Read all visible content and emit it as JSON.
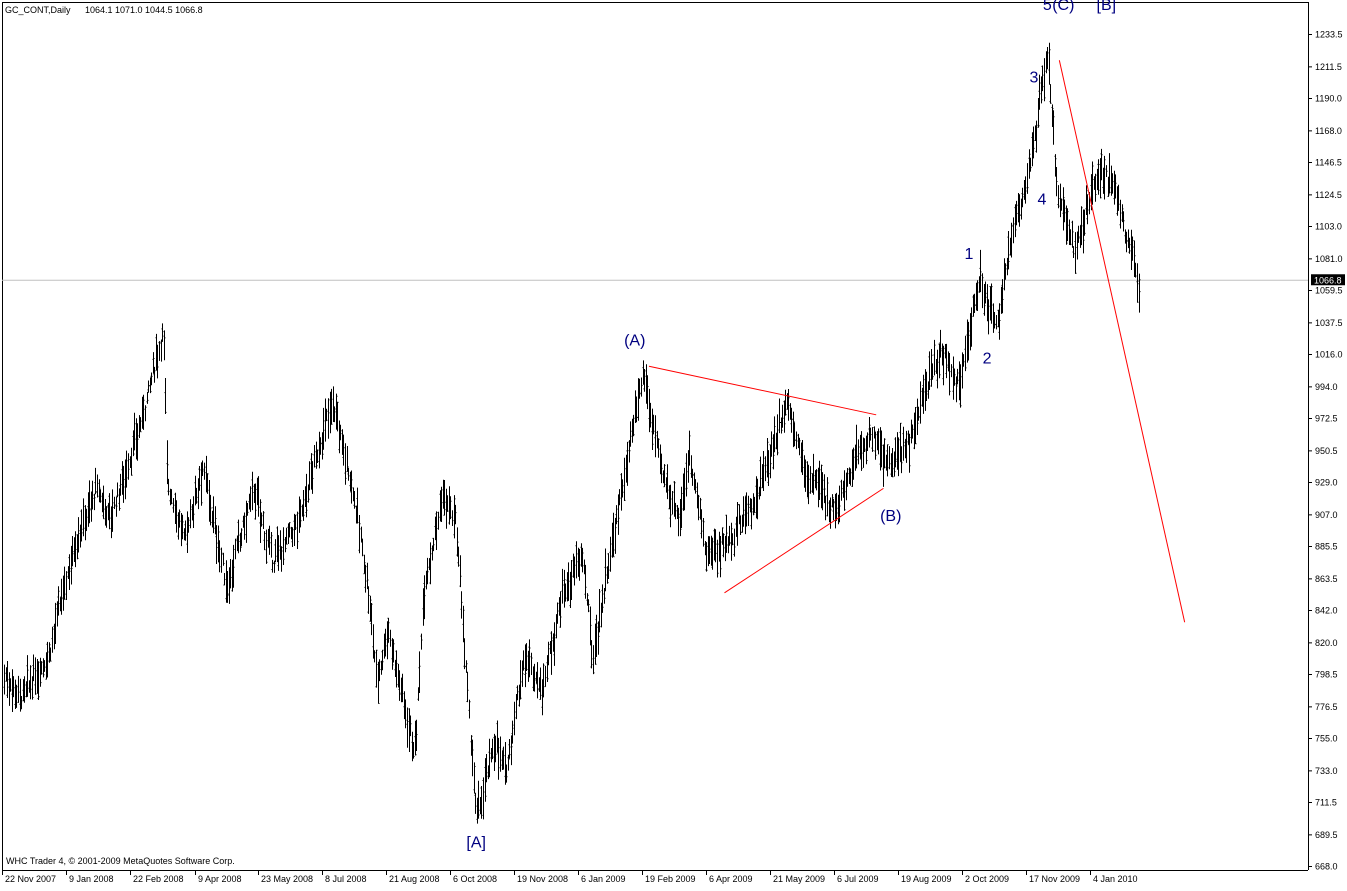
{
  "header": {
    "symbol_timeframe": "GC_CONT,Daily",
    "ohlc": "1064.1 1071.0 1044.5 1066.8"
  },
  "footer": {
    "copyright": "WHC Trader 4, © 2001-2009 MetaQuotes Software Corp."
  },
  "current_price_label": "1066.8",
  "chart_data": {
    "type": "ohlc-bar",
    "symbol": "GC_CONT",
    "timeframe": "Daily",
    "last_bar": {
      "open": 1064.1,
      "high": 1071.0,
      "low": 1044.5,
      "close": 1066.8
    },
    "current_price": 1066.8,
    "ylim": [
      668.0,
      1255.0
    ],
    "y_ticks": [
      {
        "value": 1233.5,
        "label": "1233.5"
      },
      {
        "value": 1211.5,
        "label": "1211.5"
      },
      {
        "value": 1190.0,
        "label": "1190.0"
      },
      {
        "value": 1168.0,
        "label": "1168.0"
      },
      {
        "value": 1146.5,
        "label": "1146.5"
      },
      {
        "value": 1124.5,
        "label": "1124.5"
      },
      {
        "value": 1103.0,
        "label": "1103.0"
      },
      {
        "value": 1081.0,
        "label": "1081.0"
      },
      {
        "value": 1059.5,
        "label": "1059.5"
      },
      {
        "value": 1037.5,
        "label": "1037.5"
      },
      {
        "value": 1016.0,
        "label": "1016.0"
      },
      {
        "value": 994.0,
        "label": "994.0"
      },
      {
        "value": 972.5,
        "label": "972.5"
      },
      {
        "value": 950.5,
        "label": "950.5"
      },
      {
        "value": 929.0,
        "label": "929.0"
      },
      {
        "value": 907.0,
        "label": "907.0"
      },
      {
        "value": 885.5,
        "label": "885.5"
      },
      {
        "value": 863.5,
        "label": "863.5"
      },
      {
        "value": 842.0,
        "label": "842.0"
      },
      {
        "value": 820.0,
        "label": "820.0"
      },
      {
        "value": 798.5,
        "label": "798.5"
      },
      {
        "value": 776.5,
        "label": "776.5"
      },
      {
        "value": 755.0,
        "label": "755.0"
      },
      {
        "value": 733.0,
        "label": "733.0"
      },
      {
        "value": 711.5,
        "label": "711.5"
      },
      {
        "value": 689.5,
        "label": "689.5"
      },
      {
        "value": 668.0,
        "label": "668.0"
      }
    ],
    "x_ticks": [
      {
        "date": "2007-11-22",
        "label": "22 Nov 2007"
      },
      {
        "date": "2008-01-09",
        "label": "9 Jan 2008"
      },
      {
        "date": "2008-02-22",
        "label": "22 Feb 2008"
      },
      {
        "date": "2008-04-09",
        "label": "9 Apr 2008"
      },
      {
        "date": "2008-05-23",
        "label": "23 May 2008"
      },
      {
        "date": "2008-07-08",
        "label": "8 Jul 2008"
      },
      {
        "date": "2008-08-21",
        "label": "21 Aug 2008"
      },
      {
        "date": "2008-10-06",
        "label": "6 Oct 2008"
      },
      {
        "date": "2008-11-19",
        "label": "19 Nov 2008"
      },
      {
        "date": "2009-01-06",
        "label": "6 Jan 2009"
      },
      {
        "date": "2009-02-19",
        "label": "19 Feb 2009"
      },
      {
        "date": "2009-04-06",
        "label": "6 Apr 2009"
      },
      {
        "date": "2009-05-21",
        "label": "21 May 2009"
      },
      {
        "date": "2009-07-06",
        "label": "6 Jul 2009"
      },
      {
        "date": "2009-08-19",
        "label": "19 Aug 2009"
      },
      {
        "date": "2009-10-02",
        "label": "2 Oct 2009"
      },
      {
        "date": "2009-11-17",
        "label": "17 Nov 2009"
      },
      {
        "date": "2010-01-04",
        "label": "4 Jan 2010"
      }
    ],
    "end_date": "2010-01-28",
    "price_path": [
      {
        "date": "2007-11-22",
        "price": 800
      },
      {
        "date": "2007-12-07",
        "price": 783
      },
      {
        "date": "2007-12-27",
        "price": 812
      },
      {
        "date": "2008-01-14",
        "price": 885
      },
      {
        "date": "2008-01-30",
        "price": 925
      },
      {
        "date": "2008-02-08",
        "price": 905
      },
      {
        "date": "2008-02-27",
        "price": 960
      },
      {
        "date": "2008-03-17",
        "price": 1032
      },
      {
        "date": "2008-03-20",
        "price": 930
      },
      {
        "date": "2008-04-01",
        "price": 890
      },
      {
        "date": "2008-04-14",
        "price": 940
      },
      {
        "date": "2008-05-01",
        "price": 858
      },
      {
        "date": "2008-05-20",
        "price": 925
      },
      {
        "date": "2008-06-02",
        "price": 875
      },
      {
        "date": "2008-06-20",
        "price": 900
      },
      {
        "date": "2008-07-15",
        "price": 985
      },
      {
        "date": "2008-07-30",
        "price": 920
      },
      {
        "date": "2008-08-08",
        "price": 860
      },
      {
        "date": "2008-08-15",
        "price": 795
      },
      {
        "date": "2008-08-22",
        "price": 830
      },
      {
        "date": "2008-09-11",
        "price": 745
      },
      {
        "date": "2008-09-17",
        "price": 860
      },
      {
        "date": "2008-10-01",
        "price": 920
      },
      {
        "date": "2008-10-10",
        "price": 900
      },
      {
        "date": "2008-10-24",
        "price": 700
      },
      {
        "date": "2008-11-06",
        "price": 755
      },
      {
        "date": "2008-11-13",
        "price": 730
      },
      {
        "date": "2008-11-26",
        "price": 810
      },
      {
        "date": "2008-12-10",
        "price": 790
      },
      {
        "date": "2008-12-24",
        "price": 850
      },
      {
        "date": "2009-01-09",
        "price": 880
      },
      {
        "date": "2009-01-16",
        "price": 810
      },
      {
        "date": "2009-01-27",
        "price": 875
      },
      {
        "date": "2009-02-09",
        "price": 945
      },
      {
        "date": "2009-02-20",
        "price": 1003
      },
      {
        "date": "2009-03-05",
        "price": 935
      },
      {
        "date": "2009-03-18",
        "price": 905
      },
      {
        "date": "2009-03-25",
        "price": 950
      },
      {
        "date": "2009-04-06",
        "price": 880
      },
      {
        "date": "2009-04-22",
        "price": 890
      },
      {
        "date": "2009-05-12",
        "price": 920
      },
      {
        "date": "2009-06-02",
        "price": 985
      },
      {
        "date": "2009-06-15",
        "price": 935
      },
      {
        "date": "2009-07-08",
        "price": 910
      },
      {
        "date": "2009-07-21",
        "price": 950
      },
      {
        "date": "2009-08-03",
        "price": 960
      },
      {
        "date": "2009-08-14",
        "price": 940
      },
      {
        "date": "2009-08-26",
        "price": 955
      },
      {
        "date": "2009-09-08",
        "price": 995
      },
      {
        "date": "2009-09-17",
        "price": 1020
      },
      {
        "date": "2009-09-30",
        "price": 995
      },
      {
        "date": "2009-10-14",
        "price": 1065
      },
      {
        "date": "2009-10-28",
        "price": 1035
      },
      {
        "date": "2009-11-05",
        "price": 1090
      },
      {
        "date": "2009-11-20",
        "price": 1145
      },
      {
        "date": "2009-12-03",
        "price": 1220
      },
      {
        "date": "2009-12-10",
        "price": 1130
      },
      {
        "date": "2009-12-17",
        "price": 1110
      },
      {
        "date": "2009-12-23",
        "price": 1085
      },
      {
        "date": "2010-01-08",
        "price": 1140
      },
      {
        "date": "2010-01-14",
        "price": 1135
      },
      {
        "date": "2010-01-22",
        "price": 1095
      },
      {
        "date": "2010-01-28",
        "price": 1066.8
      }
    ],
    "wave_labels": [
      {
        "text": "[A]",
        "date": "2008-10-24",
        "price": 681
      },
      {
        "text": "(A)",
        "date": "2009-02-14",
        "price": 1022
      },
      {
        "text": "(B)",
        "date": "2009-08-14",
        "price": 903
      },
      {
        "text": "1",
        "date": "2009-10-07",
        "price": 1081
      },
      {
        "text": "2",
        "date": "2009-10-20",
        "price": 1010
      },
      {
        "text": "3",
        "date": "2009-11-23",
        "price": 1201
      },
      {
        "text": "4",
        "date": "2009-11-29",
        "price": 1118
      },
      {
        "text": "5",
        "date": "2009-12-03",
        "price": 1250
      },
      {
        "text": "(C)",
        "date": "2009-12-15",
        "price": 1250
      },
      {
        "text": "[B]",
        "date": "2010-01-12",
        "price": 1250
      }
    ],
    "trendlines": [
      {
        "name": "triangle-upper",
        "from": {
          "date": "2009-02-24",
          "price": 1008
        },
        "to": {
          "date": "2009-08-04",
          "price": 975
        }
      },
      {
        "name": "triangle-lower",
        "from": {
          "date": "2009-04-19",
          "price": 854
        },
        "to": {
          "date": "2009-08-09",
          "price": 925
        }
      },
      {
        "name": "projection",
        "from": {
          "date": "2009-12-12",
          "price": 1216
        },
        "to": {
          "date": "2010-03-16",
          "price": 834
        }
      }
    ],
    "colors": {
      "bars": "#000000",
      "trendline": "#ff0000",
      "wave_labels": "#000080",
      "current_price_line": "#c0c0c0",
      "background": "#ffffff"
    },
    "grid": false
  }
}
